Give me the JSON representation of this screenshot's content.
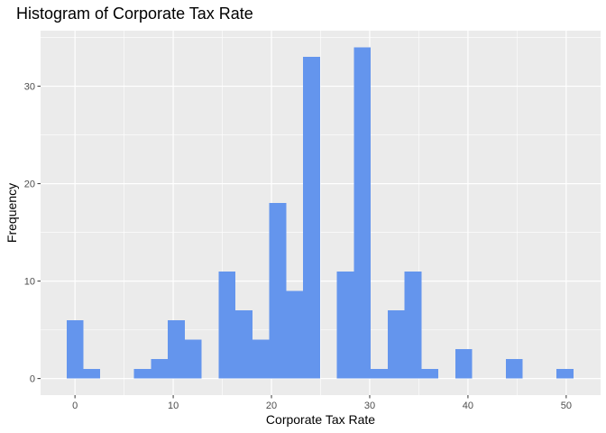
{
  "chart_data": {
    "type": "bar",
    "title": "Histogram of Corporate Tax Rate",
    "xlabel": "Corporate Tax Rate",
    "ylabel": "Frequency",
    "xlim": [
      -3.5,
      53.5
    ],
    "ylim": [
      -1.7,
      35.7
    ],
    "x_ticks": [
      0,
      10,
      20,
      30,
      40,
      50
    ],
    "y_ticks": [
      0,
      10,
      20,
      30
    ],
    "bin_width": 1.72,
    "bins": [
      {
        "x0": -0.86,
        "x1": 0.86,
        "count": 6
      },
      {
        "x0": 0.86,
        "x1": 2.58,
        "count": 1
      },
      {
        "x0": 2.58,
        "x1": 4.3,
        "count": 0
      },
      {
        "x0": 4.3,
        "x1": 6.02,
        "count": 0
      },
      {
        "x0": 6.02,
        "x1": 7.74,
        "count": 1
      },
      {
        "x0": 7.74,
        "x1": 9.46,
        "count": 2
      },
      {
        "x0": 9.46,
        "x1": 11.18,
        "count": 6
      },
      {
        "x0": 11.18,
        "x1": 12.9,
        "count": 4
      },
      {
        "x0": 12.9,
        "x1": 14.62,
        "count": 0
      },
      {
        "x0": 14.62,
        "x1": 16.34,
        "count": 11
      },
      {
        "x0": 16.34,
        "x1": 18.06,
        "count": 7
      },
      {
        "x0": 18.06,
        "x1": 19.78,
        "count": 4
      },
      {
        "x0": 19.78,
        "x1": 21.5,
        "count": 18
      },
      {
        "x0": 21.5,
        "x1": 23.22,
        "count": 9
      },
      {
        "x0": 23.22,
        "x1": 24.94,
        "count": 33
      },
      {
        "x0": 24.94,
        "x1": 26.66,
        "count": 0
      },
      {
        "x0": 26.66,
        "x1": 28.38,
        "count": 11
      },
      {
        "x0": 28.38,
        "x1": 30.1,
        "count": 34
      },
      {
        "x0": 30.1,
        "x1": 31.82,
        "count": 1
      },
      {
        "x0": 31.82,
        "x1": 33.54,
        "count": 7
      },
      {
        "x0": 33.54,
        "x1": 35.26,
        "count": 11
      },
      {
        "x0": 35.26,
        "x1": 36.98,
        "count": 1
      },
      {
        "x0": 36.98,
        "x1": 38.7,
        "count": 0
      },
      {
        "x0": 38.7,
        "x1": 40.42,
        "count": 3
      },
      {
        "x0": 40.42,
        "x1": 42.14,
        "count": 0
      },
      {
        "x0": 42.14,
        "x1": 43.86,
        "count": 0
      },
      {
        "x0": 43.86,
        "x1": 45.58,
        "count": 2
      },
      {
        "x0": 45.58,
        "x1": 47.3,
        "count": 0
      },
      {
        "x0": 47.3,
        "x1": 49.02,
        "count": 0
      },
      {
        "x0": 49.02,
        "x1": 50.74,
        "count": 1
      }
    ],
    "grid": true,
    "colors": {
      "bar": "#6495ED",
      "panel": "#EBEBEB",
      "grid": "#FFFFFF"
    }
  }
}
